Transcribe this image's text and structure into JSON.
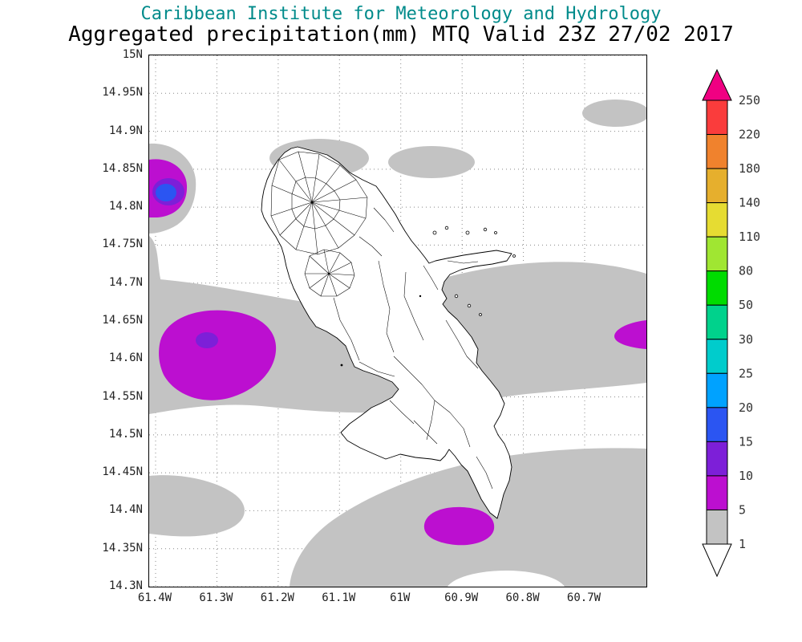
{
  "titles": {
    "line1": "Caribbean Institute for Meteorology and Hydrology",
    "line2": "Aggregated precipitation(mm) MTQ Valid 23Z 27/02 2017"
  },
  "colors": {
    "title": "#008b8b",
    "grid": "#888888",
    "frame": "#000000",
    "coastline": "#000000",
    "background": "#ffffff"
  },
  "axes": {
    "lat_labels": [
      "15N",
      "14.95N",
      "14.9N",
      "14.85N",
      "14.8N",
      "14.75N",
      "14.7N",
      "14.65N",
      "14.6N",
      "14.55N",
      "14.5N",
      "14.45N",
      "14.4N",
      "14.35N",
      "14.3N"
    ],
    "lon_labels": [
      "61.4W",
      "61.3W",
      "61.2W",
      "61.1W",
      "61W",
      "60.9W",
      "60.8W",
      "60.7W"
    ]
  },
  "colorbar": {
    "levels": [
      "250",
      "220",
      "180",
      "140",
      "110",
      "80",
      "50",
      "30",
      "25",
      "20",
      "15",
      "10",
      "5",
      "1"
    ],
    "colors_top_to_bottom": [
      "#f00082",
      "#fa3c3c",
      "#f0822d",
      "#e6af2d",
      "#e6dc32",
      "#a0e632",
      "#00dc00",
      "#00d28c",
      "#00cccc",
      "#00a2ff",
      "#2b55f2",
      "#7d1fd8",
      "#bc0fd0",
      "#c3c3c3",
      "#ffffff"
    ]
  },
  "chart_data": {
    "type": "filled-contour-map",
    "title": "Caribbean Institute for Meteorology and Hydrology",
    "subtitle": "Aggregated precipitation(mm) MTQ Valid 23Z 27/02 2017",
    "variable": "Aggregated precipitation",
    "units": "mm",
    "region": "MTQ (Martinique)",
    "valid_time": "23Z 27/02 2017",
    "lat_axis_range": [
      "14.3N",
      "15N"
    ],
    "lon_axis_labels_range": [
      "61.4W",
      "60.7W"
    ],
    "grid": "dotted",
    "contour_levels": [
      1,
      5,
      10,
      15,
      20,
      25,
      30,
      50,
      80,
      110,
      140,
      180,
      220,
      250
    ],
    "legend_position": "right colorbar with arrow ends",
    "shaded_features": [
      {
        "range_mm": "1-5",
        "color_name": "gray",
        "areas": [
          "offshore northwest near 14.82N/61.4W",
          "north of island near 14.88N/61.15W",
          "northeast near 14.92N/60.75W",
          "ellipse near 14.87N/60.95W",
          "west-to-east band across 14.55-14.67N",
          "large southern band 14.3-14.5N reaching southeast corner",
          "southwest near 14.4N/61.35W",
          "left-edge sliver near 14.73N/61.4W"
        ]
      },
      {
        "range_mm": "5-10",
        "color_name": "magenta",
        "areas": [
          "large west blob centered near 14.61N/61.31W",
          "south of island near 14.37N/60.9W",
          "far northwest edge near 14.83N/61.4W",
          "east edge near 14.62N/60.62W"
        ]
      },
      {
        "range_mm": "10-15",
        "color_name": "violet",
        "areas": [
          "core of west blob near 14.62N/61.31W",
          "inside northwest-edge blob near 14.82N/61.4W"
        ]
      },
      {
        "range_mm": "15-20",
        "color_name": "blue",
        "areas": [
          "innermost core of northwest-edge blob near 14.82N/61.4W"
        ]
      }
    ]
  }
}
